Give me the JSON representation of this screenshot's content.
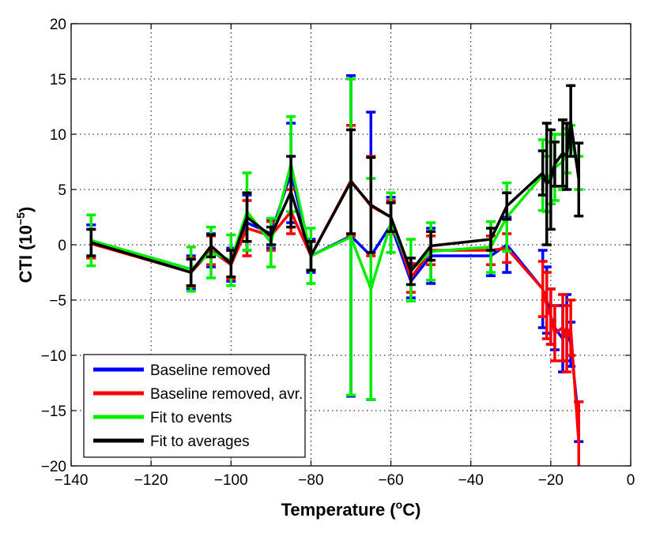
{
  "chart_data": {
    "type": "line",
    "title": "",
    "xlabel": {
      "text": "Temperature (",
      "sup": "o",
      "tail": "C)"
    },
    "ylabel": {
      "text": "CTI (10",
      "sup": "−5",
      "tail": ")"
    },
    "xlim": [
      -140,
      0
    ],
    "ylim": [
      -20,
      20
    ],
    "xticks": [
      -140,
      -120,
      -100,
      -80,
      -60,
      -40,
      -20,
      0
    ],
    "xtick_labels": [
      "−140",
      "−120",
      "−100",
      "−80",
      "−60",
      "−40",
      "−20",
      "0"
    ],
    "yticks": [
      -20,
      -15,
      -10,
      -5,
      0,
      5,
      10,
      15,
      20
    ],
    "ytick_labels": [
      "−20",
      "−15",
      "−10",
      "−5",
      "0",
      "5",
      "10",
      "15",
      "20"
    ],
    "grid": true,
    "legend": {
      "position": "bottom-left"
    },
    "series": [
      {
        "name": "Baseline removed",
        "color": "#0000ff",
        "x": [
          -135,
          -110,
          -105,
          -100,
          -96,
          -90,
          -85,
          -80,
          -70,
          -65,
          -60,
          -55,
          -50,
          -35,
          -31,
          -22,
          -21,
          -20,
          -19,
          -17,
          -16,
          -15,
          -13
        ],
        "y": [
          0.3,
          -2.5,
          -0.5,
          -1.8,
          2,
          1,
          6.5,
          -1,
          0.8,
          -1,
          1.8,
          -3.3,
          -1,
          -1,
          0,
          -4,
          -5,
          -6.5,
          -7.5,
          -8.5,
          -7.5,
          -9,
          -16
        ],
        "err": [
          1.5,
          1.5,
          1.5,
          1.5,
          2.5,
          1.3,
          4.5,
          1.5,
          14.5,
          13,
          2.5,
          1.5,
          2.5,
          1.8,
          2.5,
          3.5,
          3,
          2.5,
          2,
          3,
          3,
          2,
          1.8
        ]
      },
      {
        "name": "Baseline removed, avr.",
        "color": "#ff0000",
        "x": [
          -135,
          -110,
          -105,
          -100,
          -96,
          -90,
          -85,
          -80,
          -70,
          -65,
          -60,
          -55,
          -50,
          -35,
          -31,
          -22,
          -21,
          -20,
          -19,
          -17,
          -16,
          -15,
          -13
        ],
        "y": [
          0.1,
          -2.5,
          -0.5,
          -1.8,
          1.5,
          0.8,
          3,
          -1,
          5.8,
          3.5,
          2.5,
          -3,
          -0.5,
          -0.5,
          -0.3,
          -4,
          -5.5,
          -6.5,
          -8,
          -7.5,
          -8.5,
          -7.5,
          -18
        ],
        "err": [
          1.3,
          1.3,
          1.3,
          1.3,
          2.5,
          1.3,
          2,
          1.3,
          5,
          4.5,
          1.5,
          1.3,
          1.3,
          1.3,
          1.3,
          2.5,
          3,
          2.5,
          2.5,
          3,
          3,
          2.5,
          3.8
        ]
      },
      {
        "name": "Fit to events",
        "color": "#00ee00",
        "x": [
          -135,
          -110,
          -105,
          -100,
          -96,
          -90,
          -85,
          -80,
          -70,
          -65,
          -60,
          -55,
          -50,
          -35,
          -31,
          -22,
          -21,
          -20,
          -19,
          -17,
          -16,
          -15,
          -13
        ],
        "y": [
          0.4,
          -2.2,
          -0.7,
          -1.4,
          3,
          0.2,
          7.3,
          -1,
          0.7,
          -4,
          2,
          -2.3,
          -0.6,
          -0.2,
          2.5,
          6.3,
          5.5,
          6.5,
          7,
          7.5,
          8.5,
          9.8,
          6.5
        ],
        "err": [
          2.3,
          2,
          2.3,
          2.3,
          3.5,
          2.2,
          4.3,
          2.5,
          14.3,
          10,
          2.7,
          2.8,
          2.6,
          2.3,
          3.1,
          3.2,
          2.5,
          2.8,
          3,
          2.5,
          2,
          1,
          1.5
        ]
      },
      {
        "name": "Fit to averages",
        "color": "#000000",
        "x": [
          -135,
          -110,
          -105,
          -100,
          -96,
          -90,
          -85,
          -80,
          -70,
          -65,
          -60,
          -55,
          -50,
          -35,
          -31,
          -22,
          -21,
          -20,
          -19,
          -17,
          -16,
          -15,
          -13
        ],
        "y": [
          0.2,
          -2.5,
          -0.1,
          -1.7,
          2.5,
          0.8,
          4.8,
          -1,
          5.7,
          3.6,
          2.5,
          -2.4,
          -0.1,
          0.5,
          3.5,
          6.5,
          5.5,
          5.9,
          7.3,
          8.3,
          8,
          11.2,
          5.9
        ],
        "err": [
          1.2,
          1.2,
          1,
          1.2,
          2.2,
          0.8,
          3.2,
          1.3,
          4.7,
          4.3,
          1.3,
          1.2,
          1.3,
          1,
          1.2,
          2,
          5.5,
          4.5,
          2,
          3,
          3,
          3.2,
          3.3
        ]
      }
    ]
  }
}
